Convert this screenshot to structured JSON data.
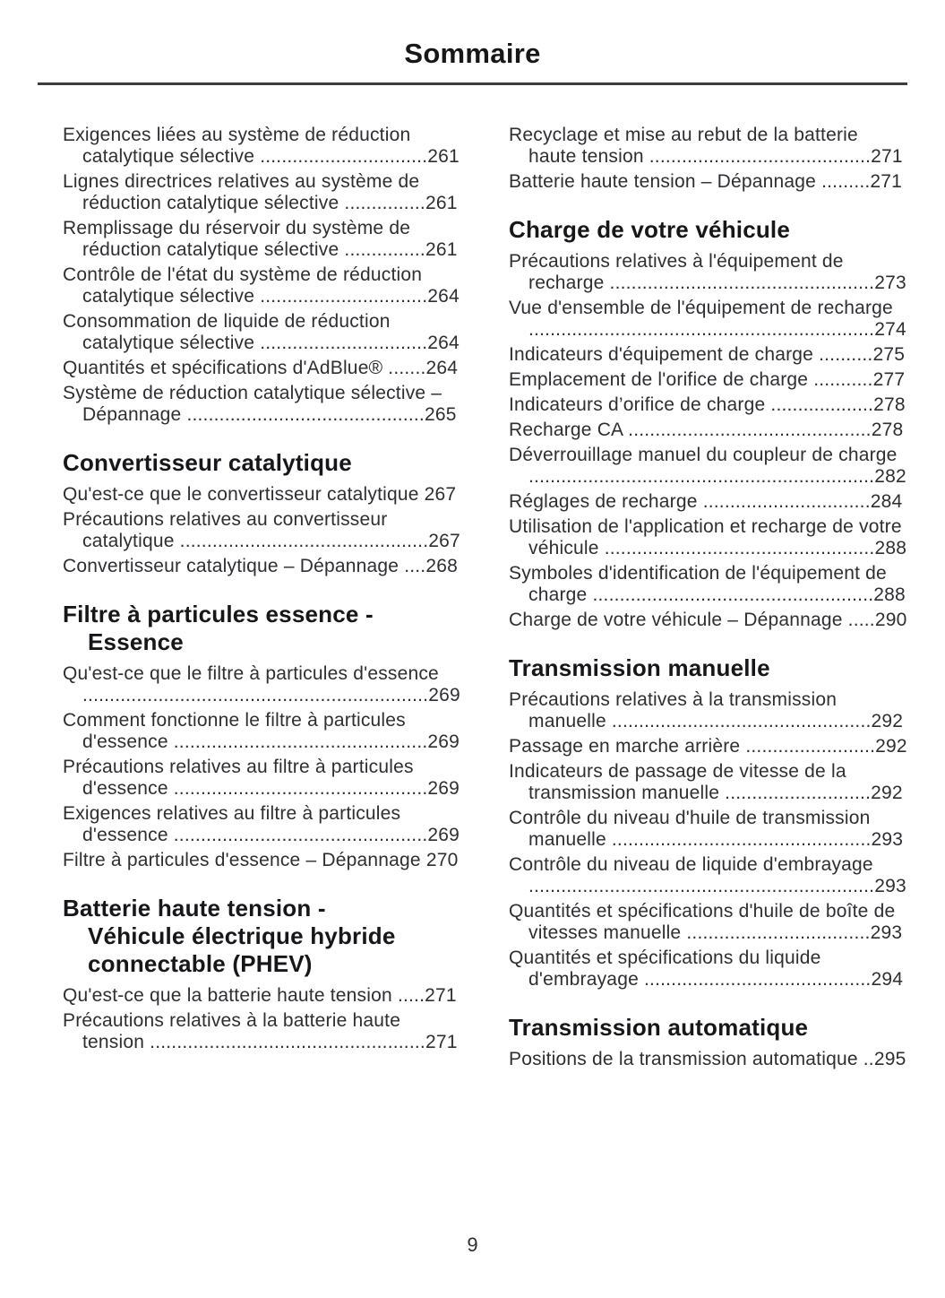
{
  "page": {
    "title": "Sommaire",
    "page_number": "9"
  },
  "colors": {
    "heading_text": "#17171b",
    "body_text": "#2e2e33",
    "background": "#ffffff"
  },
  "columns": [
    {
      "blocks": [
        {
          "items": [
            {
              "text": "Exigences liées au système de réduction catalytique sélective",
              "page": "261"
            },
            {
              "text": "Lignes directrices relatives au système de réduction catalytique sélective",
              "page": "261"
            },
            {
              "text": "Remplissage du réservoir du système de réduction catalytique sélective",
              "page": "261"
            },
            {
              "text": "Contrôle de l'état du système de réduction catalytique sélective",
              "page": "264"
            },
            {
              "text": "Consommation de liquide de réduction catalytique sélective",
              "page": "264"
            },
            {
              "text": "Quantités et spécifications d'AdBlue®",
              "page": "264"
            },
            {
              "text": "Système de réduction catalytique sélective – Dépannage",
              "page": "265"
            }
          ]
        },
        {
          "title": "Convertisseur catalytique",
          "items": [
            {
              "text": "Qu'est-ce que le convertisseur catalytique",
              "page": "267"
            },
            {
              "text": "Précautions relatives au convertisseur catalytique",
              "page": "267"
            },
            {
              "text": "Convertisseur catalytique – Dépannage",
              "page": "268"
            }
          ]
        },
        {
          "title": "Filtre à particules essence -\nEssence",
          "items": [
            {
              "text": "Qu'est-ce que le filtre à particules d'essence",
              "page": "269"
            },
            {
              "text": "Comment fonctionne le filtre à particules d'essence",
              "page": "269"
            },
            {
              "text": "Précautions relatives au filtre à particules d'essence",
              "page": "269"
            },
            {
              "text": "Exigences relatives au filtre à particules d'essence",
              "page": "269"
            },
            {
              "text": "Filtre à particules d'essence – Dépannage",
              "page": "270"
            }
          ]
        },
        {
          "title": "Batterie haute tension -\nVéhicule électrique hybride\nconnectable (PHEV)",
          "items": [
            {
              "text": "Qu'est-ce que la batterie haute tension",
              "page": "271"
            },
            {
              "text": "Précautions relatives à la batterie haute tension",
              "page": "271"
            }
          ]
        }
      ]
    },
    {
      "blocks": [
        {
          "items": [
            {
              "text": "Recyclage et mise au rebut de la batterie haute tension",
              "page": "271"
            },
            {
              "text": "Batterie haute tension – Dépannage",
              "page": "271"
            }
          ]
        },
        {
          "title": "Charge de votre véhicule",
          "items": [
            {
              "text": "Précautions relatives à l'équipement de recharge",
              "page": "273"
            },
            {
              "text": "Vue d'ensemble de l'équipement de recharge",
              "page": "274"
            },
            {
              "text": "Indicateurs d'équipement de charge",
              "page": "275"
            },
            {
              "text": "Emplacement de l'orifice de charge",
              "page": "277"
            },
            {
              "text": "Indicateurs d’orifice de charge",
              "page": "278"
            },
            {
              "text": "Recharge CA",
              "page": "278"
            },
            {
              "text": "Déverrouillage manuel du coupleur de charge",
              "page": "282"
            },
            {
              "text": "Réglages de recharge",
              "page": "284"
            },
            {
              "text": "Utilisation de l'application et recharge de votre véhicule",
              "page": "288"
            },
            {
              "text": "Symboles d'identification de l'équipement de charge",
              "page": "288"
            },
            {
              "text": "Charge de votre véhicule – Dépannage",
              "page": "290"
            }
          ]
        },
        {
          "title": "Transmission manuelle",
          "items": [
            {
              "text": "Précautions relatives à la transmission manuelle",
              "page": "292"
            },
            {
              "text": "Passage en marche arrière",
              "page": "292"
            },
            {
              "text": "Indicateurs de passage de vitesse de la transmission manuelle",
              "page": "292"
            },
            {
              "text": "Contrôle du niveau d'huile de transmission manuelle",
              "page": "293"
            },
            {
              "text": "Contrôle du niveau de liquide d'embrayage",
              "page": "293"
            },
            {
              "text": "Quantités et spécifications d'huile de boîte de vitesses manuelle",
              "page": "293"
            },
            {
              "text": "Quantités et spécifications du liquide d'embrayage",
              "page": "294"
            }
          ]
        },
        {
          "title": "Transmission automatique",
          "items": [
            {
              "text": "Positions de la transmission automatique",
              "page": "295"
            }
          ]
        }
      ]
    }
  ]
}
